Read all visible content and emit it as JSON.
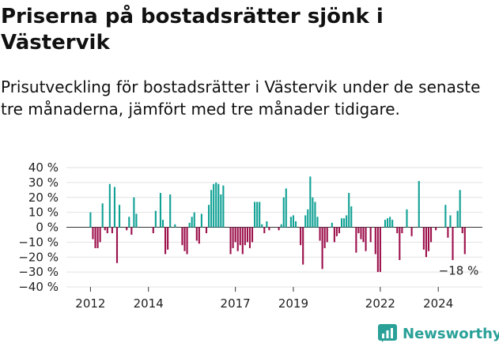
{
  "title": "Priserna på bostadsrätter sjönk i Västervik",
  "subtitle": "Prisutveckling för bostadsrätter i Västervik under de senaste tre månaderna, jämfört med tre månader tidigare.",
  "brand": {
    "name": "Newsworthy",
    "icon": "newsworthy-logo-icon",
    "color": "#2aa198"
  },
  "chart_data": {
    "type": "bar",
    "y_unit": "%",
    "ylim": [
      -40,
      40
    ],
    "y_ticks": [
      {
        "value": 40,
        "label": "40 %"
      },
      {
        "value": 30,
        "label": "30 %"
      },
      {
        "value": 20,
        "label": "20 %"
      },
      {
        "value": 10,
        "label": "10 %"
      },
      {
        "value": 0,
        "label": "0 %"
      },
      {
        "value": -10,
        "label": "−10 %"
      },
      {
        "value": -20,
        "label": "−20 %"
      },
      {
        "value": -30,
        "label": "−30 %"
      },
      {
        "value": -40,
        "label": "−40 %"
      }
    ],
    "x_ticks": [
      {
        "value": 2012,
        "label": "2012"
      },
      {
        "value": 2014,
        "label": "2014"
      },
      {
        "value": 2017,
        "label": "2017"
      },
      {
        "value": 2019,
        "label": "2019"
      },
      {
        "value": 2022,
        "label": "2022"
      },
      {
        "value": 2024,
        "label": "2024"
      }
    ],
    "grid": true,
    "colors": {
      "positive": "#10a195",
      "negative": "#9c0f4b"
    },
    "annotation": {
      "text": "−18 %",
      "value": -18
    },
    "x_start": 2012.0,
    "x_step": 0.08333333,
    "values": [
      10,
      -8,
      -14,
      -14,
      -10,
      16,
      -2,
      -4,
      29,
      -4,
      27,
      -24,
      15,
      0,
      0,
      -2,
      7,
      -5,
      20,
      9,
      0,
      0,
      0,
      0,
      0,
      0,
      -4,
      11,
      0,
      23,
      5,
      -18,
      -15,
      22,
      0,
      2,
      0,
      0,
      -12,
      -16,
      -18,
      3,
      7,
      10,
      -9,
      -11,
      9,
      0,
      -4,
      15,
      25,
      29,
      30,
      29,
      22,
      28,
      0,
      0,
      -18,
      -14,
      -10,
      -16,
      -12,
      -18,
      -12,
      -10,
      -14,
      -10,
      17,
      17,
      17,
      2,
      -4,
      4,
      -2,
      0,
      0,
      0,
      -2,
      2,
      20,
      26,
      0,
      7,
      8,
      4,
      0,
      -12,
      -25,
      8,
      12,
      34,
      20,
      17,
      7,
      -9,
      -28,
      -14,
      -10,
      0,
      3,
      -10,
      -6,
      -4,
      6,
      6,
      8,
      23,
      14,
      0,
      -17,
      -4,
      -8,
      -10,
      -16,
      0,
      -10,
      0,
      -18,
      -30,
      -30,
      0,
      5,
      6,
      7,
      5,
      0,
      -4,
      -22,
      -4,
      0,
      12,
      0,
      -6,
      0,
      0,
      31,
      0,
      -15,
      -20,
      -16,
      -10,
      0,
      -2,
      0,
      0,
      0,
      15,
      -7,
      8,
      -22,
      0,
      11,
      25,
      -4,
      -18
    ]
  }
}
